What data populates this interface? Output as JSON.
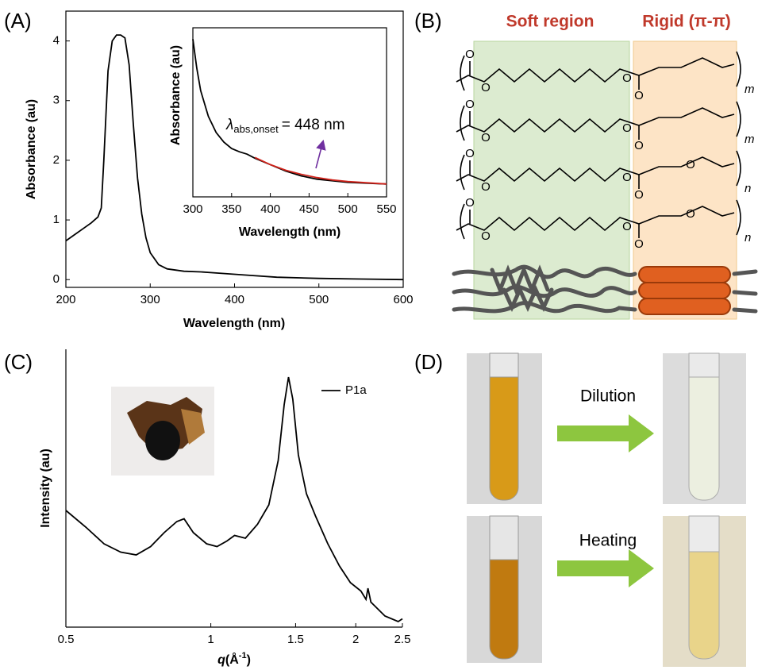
{
  "panel_labels": {
    "a": "(A)",
    "b": "(B)",
    "c": "(C)",
    "d": "(D)"
  },
  "chart_data": [
    {
      "type": "line",
      "x_label": "Wavelength (nm)",
      "y_label": "Absorbance (au)",
      "x": [
        200,
        210,
        220,
        230,
        238,
        242,
        245,
        250,
        255,
        260,
        265,
        270,
        275,
        280,
        285,
        290,
        295,
        300,
        310,
        320,
        340,
        360,
        380,
        400,
        420,
        450,
        500,
        550,
        600
      ],
      "values": [
        0.65,
        0.75,
        0.85,
        0.95,
        1.05,
        1.2,
        2.0,
        3.5,
        4.0,
        4.1,
        4.1,
        4.05,
        3.6,
        2.6,
        1.7,
        1.1,
        0.7,
        0.45,
        0.25,
        0.18,
        0.14,
        0.13,
        0.11,
        0.09,
        0.07,
        0.04,
        0.02,
        0.01,
        0.0
      ],
      "color": "#000000",
      "xlim": [
        200,
        600
      ],
      "ylim": [
        -0.13,
        4.5
      ],
      "xticks": [
        200,
        300,
        400,
        500,
        600
      ],
      "yticks": [
        0,
        1,
        2,
        3,
        4
      ]
    },
    {
      "type": "line",
      "x_label": "Wavelength (nm)",
      "y_label": "Absorbance (au)",
      "x": [
        300,
        305,
        310,
        320,
        330,
        340,
        350,
        360,
        370,
        380,
        400,
        420,
        440,
        460,
        480,
        500,
        550
      ],
      "series": [
        {
          "color": "#000000",
          "values": [
            0.98,
            0.8,
            0.66,
            0.5,
            0.4,
            0.34,
            0.3,
            0.28,
            0.265,
            0.24,
            0.2,
            0.16,
            0.13,
            0.11,
            0.1,
            0.09,
            0.08
          ]
        },
        {
          "color": "#d0231b",
          "values": [
            null,
            null,
            null,
            null,
            null,
            null,
            null,
            null,
            null,
            0.245,
            0.2,
            0.165,
            0.14,
            0.12,
            0.105,
            0.095,
            0.08
          ]
        }
      ],
      "annotation": {
        "symbol": "λ",
        "subscript": "abs,onset",
        "text": "= 448 nm"
      },
      "xlim": [
        300,
        550
      ],
      "ylim": [
        0,
        1.05
      ],
      "xticks": [
        300,
        350,
        400,
        450,
        500,
        550
      ]
    },
    {
      "type": "line",
      "log_x": true,
      "y_label": "Intensity (au)",
      "x_label": {
        "symbol": "q",
        "unit": "(Å",
        "exponent": "-1",
        "close": ")"
      },
      "x": [
        0.5,
        0.55,
        0.6,
        0.65,
        0.7,
        0.75,
        0.8,
        0.85,
        0.88,
        0.92,
        0.98,
        1.03,
        1.08,
        1.12,
        1.18,
        1.25,
        1.32,
        1.38,
        1.42,
        1.45,
        1.48,
        1.52,
        1.58,
        1.65,
        1.75,
        1.85,
        1.95,
        2.05,
        2.1,
        2.12,
        2.15,
        2.3,
        2.45,
        2.5
      ],
      "series": [
        {
          "name": "P1a",
          "color": "#000000",
          "values": [
            0.42,
            0.36,
            0.3,
            0.27,
            0.26,
            0.29,
            0.34,
            0.38,
            0.39,
            0.34,
            0.3,
            0.29,
            0.31,
            0.33,
            0.32,
            0.37,
            0.44,
            0.6,
            0.8,
            0.9,
            0.82,
            0.62,
            0.48,
            0.4,
            0.3,
            0.22,
            0.16,
            0.13,
            0.1,
            0.14,
            0.09,
            0.04,
            0.02,
            0.03
          ]
        }
      ],
      "xlim": [
        0.5,
        2.5
      ],
      "ylim": [
        0,
        1
      ],
      "xticks": [
        0.5,
        1,
        1.5,
        2,
        2.5
      ],
      "legend": "upper-right"
    }
  ],
  "diagram": {
    "soft_label": "Soft region",
    "rigid_label": "Rigid (π-π)",
    "atom": "O",
    "repeat_subscripts": [
      "m",
      "m",
      "n",
      "n"
    ]
  },
  "photos": {
    "dilution": "Dilution",
    "heating": "Heating"
  }
}
